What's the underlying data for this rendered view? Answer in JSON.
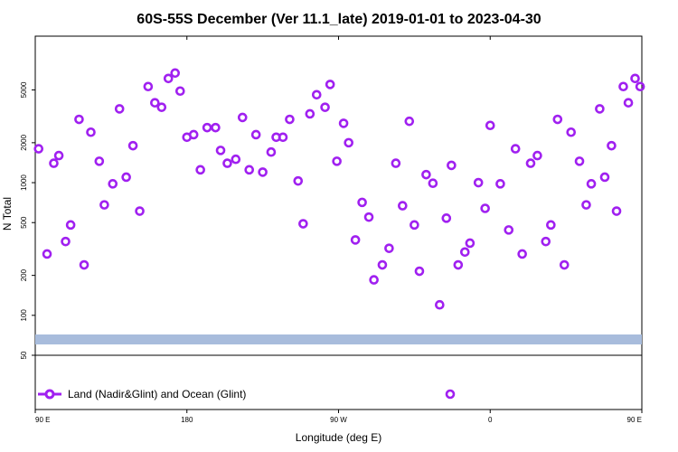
{
  "chart_data": {
    "type": "scatter",
    "title": "60S-55S December (Ver 11.1_late)   2019-01-01 to 2023-04-30",
    "xlabel": "Longitude (deg E)",
    "ylabel": "N Total",
    "y_scale": "log",
    "xlim": [
      90,
      450
    ],
    "ylim": [
      50,
      9000
    ],
    "x_ticks": [
      {
        "value": 90,
        "label": "90 E"
      },
      {
        "value": 180,
        "label": "180"
      },
      {
        "value": 270,
        "label": "90 W"
      },
      {
        "value": 360,
        "label": "0"
      },
      {
        "value": 450,
        "label": "90 E"
      }
    ],
    "x_ticks_top": [
      180,
      270,
      360
    ],
    "y_ticks": [
      {
        "value": 50,
        "label": "50"
      },
      {
        "value": 100,
        "label": "100"
      },
      {
        "value": 200,
        "label": "200"
      },
      {
        "value": 500,
        "label": "500"
      },
      {
        "value": 1000,
        "label": "1000"
      },
      {
        "value": 2000,
        "label": "2000"
      },
      {
        "value": 5000,
        "label": "5000"
      }
    ],
    "series": [
      {
        "name": "Land (Nadir&Glint) and Ocean (Glint)",
        "color": "#a020f0",
        "x": [
          92,
          97,
          101,
          104,
          108,
          111,
          116,
          119,
          123,
          128,
          131,
          136,
          140,
          144,
          148,
          152,
          157,
          161,
          165,
          169,
          173,
          176,
          180,
          184,
          188,
          192,
          197,
          200,
          204,
          209,
          213,
          217,
          221,
          225,
          230,
          233,
          237,
          241,
          246,
          249,
          253,
          257,
          262,
          265,
          269,
          273,
          276,
          280,
          284,
          288,
          291,
          296,
          300,
          304,
          308,
          312,
          315,
          318,
          322,
          326,
          330,
          334,
          337,
          341,
          345,
          348,
          353,
          357,
          360,
          366,
          371,
          375,
          379,
          384,
          388,
          393,
          396,
          400,
          404,
          408,
          413,
          417,
          420,
          425,
          428,
          432,
          435,
          439,
          442,
          446,
          449
        ],
        "y": [
          1800,
          290,
          1400,
          1600,
          360,
          480,
          3000,
          240,
          2400,
          1450,
          680,
          980,
          3600,
          1100,
          1900,
          610,
          5300,
          4000,
          3700,
          6100,
          6700,
          4900,
          2200,
          2300,
          1250,
          2600,
          2600,
          1750,
          1400,
          1500,
          3100,
          1250,
          2300,
          1200,
          1700,
          2200,
          2200,
          3000,
          1030,
          490,
          3300,
          4600,
          3700,
          5500,
          1450,
          2800,
          2000,
          370,
          710,
          550,
          185,
          240,
          320,
          1400,
          670,
          2900,
          480,
          215,
          1150,
          990,
          120,
          540,
          1350,
          240,
          300,
          350,
          1000,
          640,
          2700,
          980,
          440,
          1800,
          290,
          1400,
          1600,
          360,
          480,
          3000,
          240,
          2400,
          1450,
          680,
          980,
          3600,
          1100,
          1900,
          610,
          5300,
          4000,
          6100,
          5300
        ]
      }
    ],
    "band": {
      "color": "#a8bcdc"
    },
    "grid": false,
    "legend": {
      "placement": "bottom-left",
      "label": "Land (Nadir&Glint) and Ocean (Glint)",
      "color": "#a020f0"
    }
  }
}
